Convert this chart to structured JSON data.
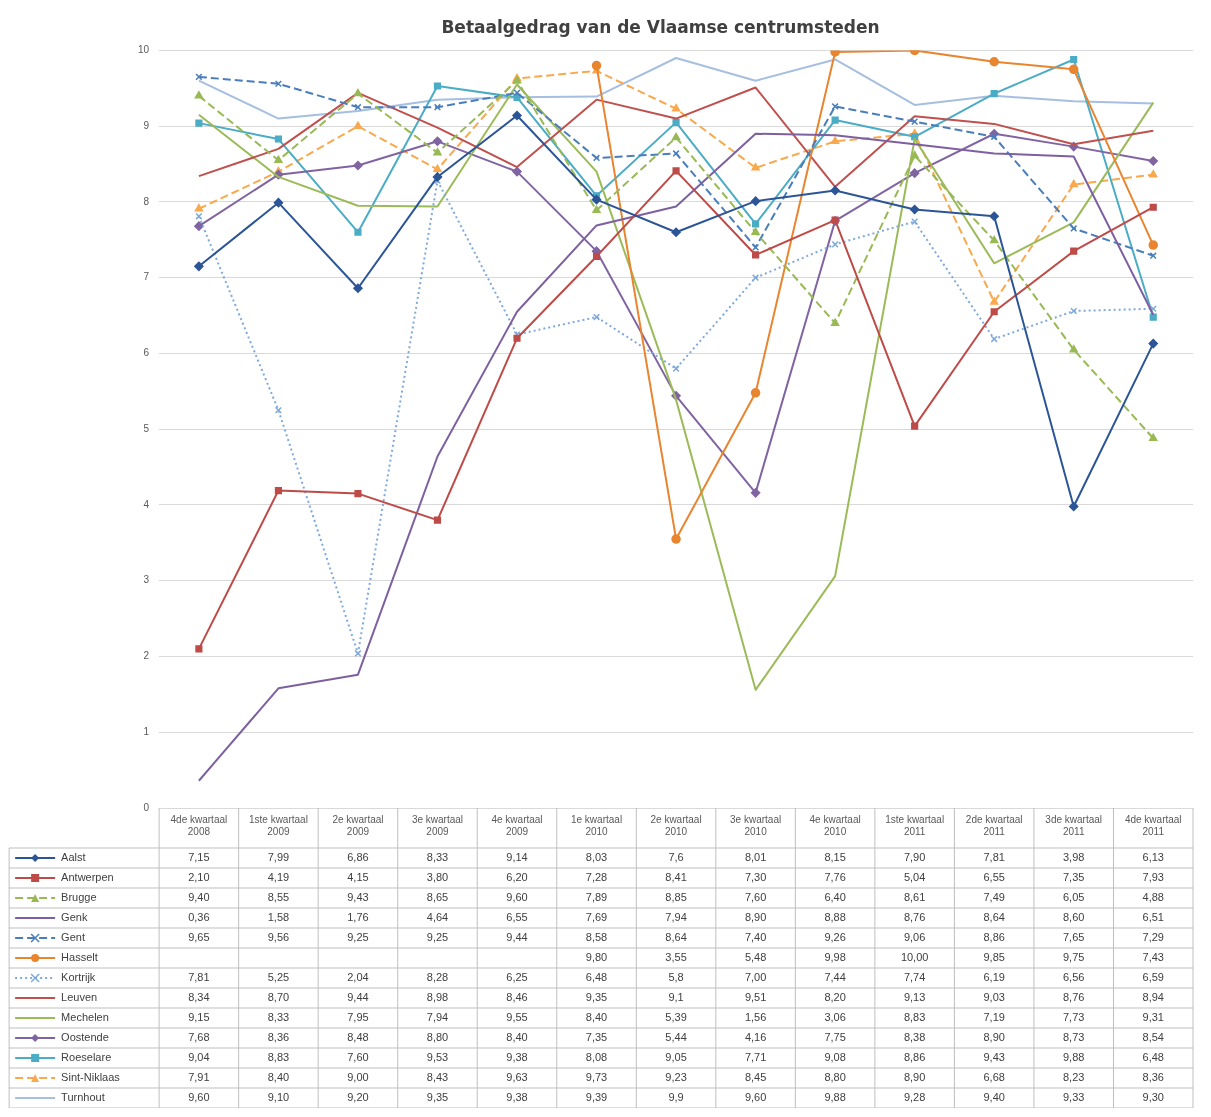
{
  "chart_data": {
    "type": "line",
    "title": "Betaalgedrag van de Vlaamse centrumsteden",
    "categories": [
      "4de kwartaal 2008",
      "1ste kwartaal 2009",
      "2e kwartaal 2009",
      "3e kwartaal 2009",
      "4e kwartaal 2009",
      "1e kwartaal 2010",
      "2e kwartaal 2010",
      "3e kwartaal 2010",
      "4e kwartaal 2010",
      "1ste kwartaal 2011",
      "2de kwartaal 2011",
      "3de kwartaal 2011",
      "4de kwartaal 2011"
    ],
    "ylim": [
      0,
      10
    ],
    "yticks": [
      0,
      1,
      2,
      3,
      4,
      5,
      6,
      7,
      8,
      9,
      10
    ],
    "grid": "y",
    "legend": "bottom left",
    "series": [
      {
        "name": "Aalst",
        "color": "#2c5597",
        "marker": "diamond",
        "line_style": "solid",
        "values": [
          7.15,
          7.99,
          6.86,
          8.33,
          9.14,
          8.03,
          7.6,
          8.01,
          8.15,
          7.9,
          7.81,
          3.98,
          6.13
        ],
        "value_labels": [
          "7,15",
          "7,99",
          "6,86",
          "8,33",
          "9,14",
          "8,03",
          "7,6",
          "8,01",
          "8,15",
          "7,90",
          "7,81",
          "3,98",
          "6,13"
        ]
      },
      {
        "name": "Antwerpen",
        "color": "#be4b48",
        "marker": "square",
        "line_style": "solid",
        "values": [
          2.1,
          4.19,
          4.15,
          3.8,
          6.2,
          7.28,
          8.41,
          7.3,
          7.76,
          5.04,
          6.55,
          7.35,
          7.93
        ],
        "value_labels": [
          "2,10",
          "4,19",
          "4,15",
          "3,80",
          "6,20",
          "7,28",
          "8,41",
          "7,30",
          "7,76",
          "5,04",
          "6,55",
          "7,35",
          "7,93"
        ]
      },
      {
        "name": "Brugge",
        "color": "#98b954",
        "marker": "triangle",
        "line_style": "dashed",
        "values": [
          9.4,
          8.55,
          9.43,
          8.65,
          9.6,
          7.89,
          8.85,
          7.6,
          6.4,
          8.61,
          7.49,
          6.05,
          4.88
        ],
        "value_labels": [
          "9,40",
          "8,55",
          "9,43",
          "8,65",
          "9,60",
          "7,89",
          "8,85",
          "7,60",
          "6,40",
          "8,61",
          "7,49",
          "6,05",
          "4,88"
        ]
      },
      {
        "name": "Genk",
        "color": "#7d60a0",
        "marker": "none",
        "line_style": "solid",
        "values": [
          0.36,
          1.58,
          1.76,
          4.64,
          6.55,
          7.69,
          7.94,
          8.9,
          8.88,
          8.76,
          8.64,
          8.6,
          6.51
        ],
        "value_labels": [
          "0,36",
          "1,58",
          "1,76",
          "4,64",
          "6,55",
          "7,69",
          "7,94",
          "8,90",
          "8,88",
          "8,76",
          "8,64",
          "8,60",
          "6,51"
        ]
      },
      {
        "name": "Gent",
        "color": "#4a7ebb",
        "marker": "cross",
        "line_style": "dashed",
        "values": [
          9.65,
          9.56,
          9.25,
          9.25,
          9.44,
          8.58,
          8.64,
          7.4,
          9.26,
          9.06,
          8.86,
          7.65,
          7.29
        ],
        "value_labels": [
          "9,65",
          "9,56",
          "9,25",
          "9,25",
          "9,44",
          "8,58",
          "8,64",
          "7,40",
          "9,26",
          "9,06",
          "8,86",
          "7,65",
          "7,29"
        ]
      },
      {
        "name": "Hasselt",
        "color": "#e9842f",
        "marker": "circle",
        "line_style": "solid",
        "values": [
          null,
          null,
          null,
          null,
          null,
          9.8,
          3.55,
          5.48,
          9.98,
          10.0,
          9.85,
          9.75,
          7.43
        ],
        "value_labels": [
          null,
          null,
          null,
          null,
          null,
          "9,80",
          "3,55",
          "5,48",
          "9,98",
          "10,00",
          "9,85",
          "9,75",
          "7,43"
        ]
      },
      {
        "name": "Kortrijk",
        "color": "#7fa9db",
        "marker": "cross",
        "line_style": "dotted",
        "values": [
          7.81,
          5.25,
          2.04,
          8.28,
          6.25,
          6.48,
          5.8,
          7.0,
          7.44,
          7.74,
          6.19,
          6.56,
          6.59
        ],
        "value_labels": [
          "7,81",
          "5,25",
          "2,04",
          "8,28",
          "6,25",
          "6,48",
          "5,8",
          "7,00",
          "7,44",
          "7,74",
          "6,19",
          "6,56",
          "6,59"
        ]
      },
      {
        "name": "Leuven",
        "color": "#c0504d",
        "marker": "none",
        "line_style": "solid",
        "values": [
          8.34,
          8.7,
          9.44,
          8.98,
          8.46,
          9.35,
          9.1,
          9.51,
          8.2,
          9.13,
          9.03,
          8.76,
          8.94
        ],
        "value_labels": [
          "8,34",
          "8,70",
          "9,44",
          "8,98",
          "8,46",
          "9,35",
          "9,1",
          "9,51",
          "8,20",
          "9,13",
          "9,03",
          "8,76",
          "8,94"
        ]
      },
      {
        "name": "Mechelen",
        "color": "#9bbb59",
        "marker": "none",
        "line_style": "solid",
        "values": [
          9.15,
          8.33,
          7.95,
          7.94,
          9.55,
          8.4,
          5.39,
          1.56,
          3.06,
          8.83,
          7.19,
          7.73,
          9.31
        ],
        "value_labels": [
          "9,15",
          "8,33",
          "7,95",
          "7,94",
          "9,55",
          "8,40",
          "5,39",
          "1,56",
          "3,06",
          "8,83",
          "7,19",
          "7,73",
          "9,31"
        ]
      },
      {
        "name": "Oostende",
        "color": "#8064a2",
        "marker": "diamond",
        "line_style": "solid",
        "values": [
          7.68,
          8.36,
          8.48,
          8.8,
          8.4,
          7.35,
          5.44,
          4.16,
          7.75,
          8.38,
          8.9,
          8.73,
          8.54
        ],
        "value_labels": [
          "7,68",
          "8,36",
          "8,48",
          "8,80",
          "8,40",
          "7,35",
          "5,44",
          "4,16",
          "7,75",
          "8,38",
          "8,90",
          "8,73",
          "8,54"
        ]
      },
      {
        "name": "Roeselare",
        "color": "#4bacc6",
        "marker": "square",
        "line_style": "solid",
        "values": [
          9.04,
          8.83,
          7.6,
          9.53,
          9.38,
          8.08,
          9.05,
          7.71,
          9.08,
          8.86,
          9.43,
          9.88,
          6.48
        ],
        "value_labels": [
          "9,04",
          "8,83",
          "7,60",
          "9,53",
          "9,38",
          "8,08",
          "9,05",
          "7,71",
          "9,08",
          "8,86",
          "9,43",
          "9,88",
          "6,48"
        ]
      },
      {
        "name": "Sint-Niklaas",
        "color": "#f9a94d",
        "marker": "triangle",
        "line_style": "dashed",
        "values": [
          7.91,
          8.4,
          9.0,
          8.43,
          9.63,
          9.73,
          9.23,
          8.45,
          8.8,
          8.9,
          6.68,
          8.23,
          8.36
        ],
        "value_labels": [
          "7,91",
          "8,40",
          "9,00",
          "8,43",
          "9,63",
          "9,73",
          "9,23",
          "8,45",
          "8,80",
          "8,90",
          "6,68",
          "8,23",
          "8,36"
        ]
      },
      {
        "name": "Turnhout",
        "color": "#a6bfe0",
        "marker": "none",
        "line_style": "solid",
        "values": [
          9.6,
          9.1,
          9.2,
          9.35,
          9.38,
          9.39,
          9.9,
          9.6,
          9.88,
          9.28,
          9.4,
          9.33,
          9.3
        ],
        "value_labels": [
          "9,60",
          "9,10",
          "9,20",
          "9,35",
          "9,38",
          "9,39",
          "9,9",
          "9,60",
          "9,88",
          "9,28",
          "9,40",
          "9,33",
          "9,30"
        ]
      }
    ]
  }
}
